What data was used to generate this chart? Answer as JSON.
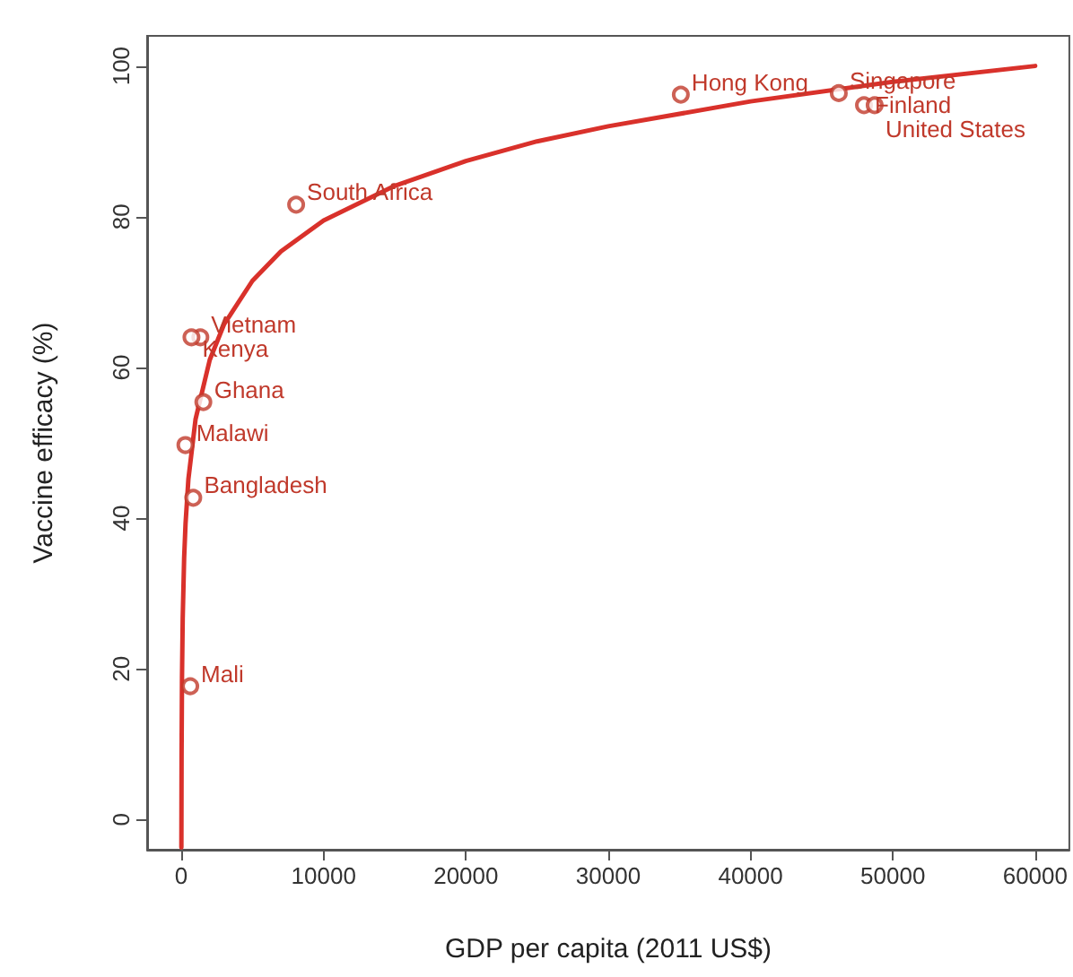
{
  "chart_data": {
    "type": "scatter",
    "xlabel": "GDP per capita (2011 US$)",
    "ylabel": "Vaccine efficacy (%)",
    "xlim": [
      -2400,
      62400
    ],
    "ylim": [
      -4,
      104
    ],
    "xticks": [
      0,
      10000,
      20000,
      30000,
      40000,
      50000,
      60000
    ],
    "yticks": [
      0,
      20,
      40,
      60,
      80,
      100
    ],
    "grid": false,
    "marker": "circle",
    "series": [
      {
        "color": "#c0392b",
        "x": [
          8070,
          1340,
          715,
          1550,
          290,
          840,
          630,
          35100,
          46200,
          47970,
          48720
        ],
        "values": [
          81.6,
          64.0,
          64.0,
          55.4,
          49.7,
          42.7,
          17.7,
          96.2,
          96.4,
          94.8,
          94.8
        ]
      },
      {
        "type": "line",
        "color": "#d9312b",
        "line_style": "solid",
        "marker": "none",
        "x": [
          7,
          20,
          50,
          100,
          200,
          300,
          500,
          1000,
          2000,
          3000,
          5000,
          7000,
          10000,
          15000,
          20000,
          25000,
          30000,
          40000,
          50000,
          60000
        ],
        "values": [
          -3.7,
          8.3,
          18.8,
          26.7,
          34.7,
          39.3,
          45.2,
          53.1,
          61.0,
          65.7,
          71.5,
          75.4,
          79.5,
          84.1,
          87.4,
          90.0,
          92.0,
          95.3,
          97.9,
          100.0
        ]
      }
    ],
    "annotations": [
      {
        "text": "South Africa",
        "x": 8070,
        "y": 81.6
      },
      {
        "text": "Vietnam",
        "x": 1340,
        "y": 64.0
      },
      {
        "text": "Kenya",
        "x": 715,
        "y": 64.0
      },
      {
        "text": "Ghana",
        "x": 1550,
        "y": 55.4
      },
      {
        "text": "Malawi",
        "x": 290,
        "y": 49.7
      },
      {
        "text": "Bangladesh",
        "x": 840,
        "y": 42.7
      },
      {
        "text": "Mali",
        "x": 630,
        "y": 17.7
      },
      {
        "text": "Hong Kong",
        "x": 35100,
        "y": 96.2
      },
      {
        "text": "Singapore",
        "x": 46200,
        "y": 96.4
      },
      {
        "text": "Finland",
        "x": 47970,
        "y": 94.8
      },
      {
        "text": "United States",
        "x": 48720,
        "y": 94.8
      }
    ]
  }
}
